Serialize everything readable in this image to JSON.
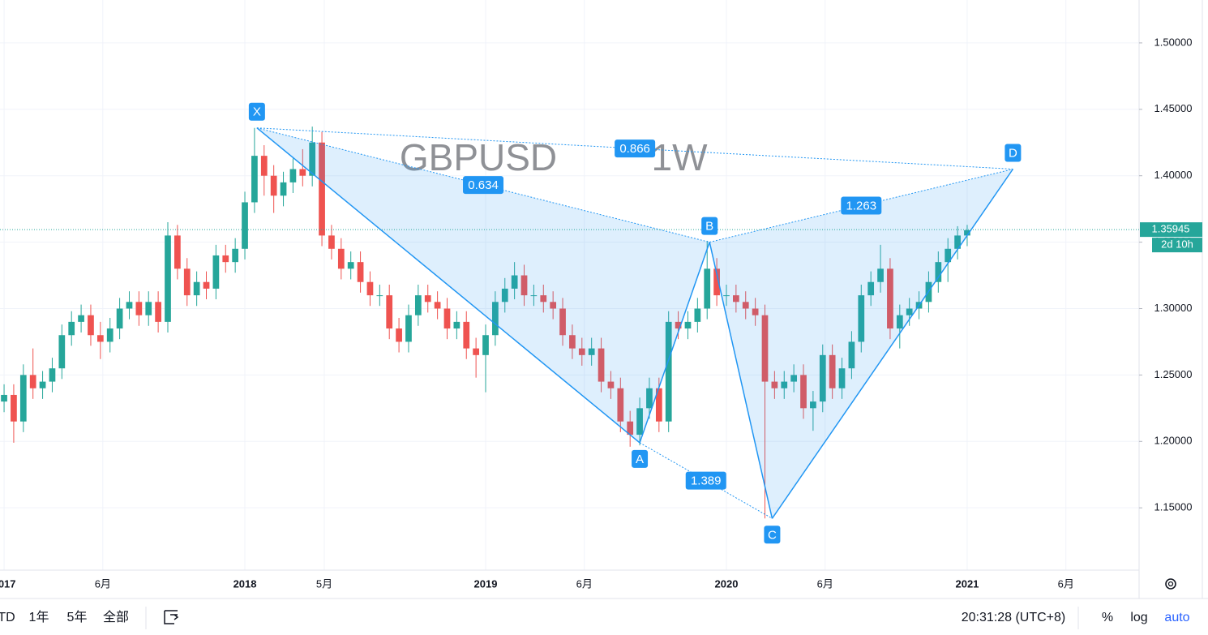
{
  "chart_data": {
    "type": "candlestick",
    "symbol": "GBPUSD",
    "interval": "1W",
    "x": [
      2017,
      2017.04,
      2017.08,
      2017.12,
      2017.16,
      2017.2,
      2017.24,
      2017.28,
      2017.32,
      2017.36,
      2017.4,
      2017.44,
      2017.48,
      2017.52,
      2017.56,
      2017.6,
      2017.64,
      2017.68,
      2017.72,
      2017.76,
      2017.8,
      2017.84,
      2017.88,
      2017.92,
      2017.96,
      2018,
      2018.04,
      2018.08,
      2018.12,
      2018.16,
      2018.2,
      2018.24,
      2018.28,
      2018.32,
      2018.36,
      2018.4,
      2018.44,
      2018.48,
      2018.52,
      2018.56,
      2018.6,
      2018.64,
      2018.68,
      2018.72,
      2018.76,
      2018.8,
      2018.84,
      2018.88,
      2018.92,
      2018.96,
      2019,
      2019.04,
      2019.08,
      2019.12,
      2019.16,
      2019.2,
      2019.24,
      2019.28,
      2019.32,
      2019.36,
      2019.4,
      2019.44,
      2019.48,
      2019.52,
      2019.56,
      2019.6,
      2019.64,
      2019.68,
      2019.72,
      2019.76,
      2019.8,
      2019.84,
      2019.88,
      2019.92,
      2019.96,
      2020,
      2020.04,
      2020.08,
      2020.12,
      2020.16,
      2020.2,
      2020.24,
      2020.28,
      2020.32,
      2020.36,
      2020.4,
      2020.44,
      2020.48,
      2020.52,
      2020.56,
      2020.6,
      2020.64,
      2020.68,
      2020.72,
      2020.76,
      2020.8,
      2020.84,
      2020.88,
      2020.92,
      2020.96,
      2021
    ],
    "open": [
      1.23,
      1.235,
      1.215,
      1.25,
      1.24,
      1.245,
      1.255,
      1.28,
      1.29,
      1.295,
      1.28,
      1.275,
      1.285,
      1.3,
      1.305,
      1.295,
      1.305,
      1.29,
      1.355,
      1.33,
      1.31,
      1.32,
      1.315,
      1.34,
      1.335,
      1.345,
      1.38,
      1.415,
      1.4,
      1.385,
      1.395,
      1.405,
      1.4,
      1.425,
      1.355,
      1.345,
      1.33,
      1.335,
      1.32,
      1.31,
      1.31,
      1.285,
      1.275,
      1.295,
      1.31,
      1.305,
      1.3,
      1.285,
      1.29,
      1.27,
      1.265,
      1.28,
      1.305,
      1.315,
      1.325,
      1.31,
      1.31,
      1.305,
      1.3,
      1.28,
      1.27,
      1.265,
      1.27,
      1.245,
      1.24,
      1.215,
      1.205,
      1.225,
      1.24,
      1.215,
      1.29,
      1.285,
      1.29,
      1.3,
      1.33,
      1.31,
      1.31,
      1.305,
      1.3,
      1.295,
      1.245,
      1.24,
      1.245,
      1.25,
      1.225,
      1.23,
      1.265,
      1.24,
      1.255,
      1.275,
      1.31,
      1.32,
      1.33,
      1.285,
      1.295,
      1.3,
      1.305,
      1.32,
      1.335,
      1.345,
      1.355
    ],
    "high": [
      1.243,
      1.243,
      1.258,
      1.27,
      1.253,
      1.263,
      1.288,
      1.298,
      1.303,
      1.303,
      1.29,
      1.293,
      1.308,
      1.313,
      1.313,
      1.313,
      1.313,
      1.365,
      1.363,
      1.338,
      1.328,
      1.328,
      1.348,
      1.348,
      1.353,
      1.388,
      1.436,
      1.423,
      1.408,
      1.403,
      1.413,
      1.42,
      1.437,
      1.433,
      1.363,
      1.353,
      1.343,
      1.343,
      1.328,
      1.318,
      1.318,
      1.293,
      1.303,
      1.318,
      1.318,
      1.313,
      1.308,
      1.298,
      1.298,
      1.278,
      1.288,
      1.313,
      1.323,
      1.335,
      1.333,
      1.318,
      1.318,
      1.313,
      1.308,
      1.288,
      1.278,
      1.278,
      1.278,
      1.253,
      1.248,
      1.223,
      1.233,
      1.248,
      1.248,
      1.298,
      1.298,
      1.298,
      1.308,
      1.351,
      1.338,
      1.318,
      1.318,
      1.313,
      1.308,
      1.303,
      1.253,
      1.253,
      1.258,
      1.258,
      1.238,
      1.273,
      1.273,
      1.263,
      1.283,
      1.318,
      1.328,
      1.348,
      1.338,
      1.303,
      1.308,
      1.313,
      1.328,
      1.343,
      1.353,
      1.362,
      1.363
    ],
    "low": [
      1.222,
      1.199,
      1.207,
      1.232,
      1.232,
      1.237,
      1.247,
      1.272,
      1.282,
      1.272,
      1.262,
      1.267,
      1.277,
      1.292,
      1.287,
      1.287,
      1.282,
      1.282,
      1.322,
      1.302,
      1.302,
      1.307,
      1.307,
      1.327,
      1.327,
      1.337,
      1.372,
      1.385,
      1.372,
      1.377,
      1.387,
      1.392,
      1.392,
      1.347,
      1.337,
      1.322,
      1.322,
      1.312,
      1.302,
      1.302,
      1.277,
      1.267,
      1.267,
      1.287,
      1.297,
      1.292,
      1.277,
      1.277,
      1.262,
      1.248,
      1.237,
      1.272,
      1.297,
      1.307,
      1.302,
      1.302,
      1.297,
      1.292,
      1.272,
      1.262,
      1.257,
      1.257,
      1.237,
      1.232,
      1.207,
      1.196,
      1.197,
      1.217,
      1.207,
      1.207,
      1.277,
      1.277,
      1.282,
      1.292,
      1.302,
      1.302,
      1.297,
      1.292,
      1.287,
      1.142,
      1.232,
      1.232,
      1.237,
      1.217,
      1.208,
      1.222,
      1.232,
      1.232,
      1.247,
      1.267,
      1.302,
      1.312,
      1.277,
      1.27,
      1.287,
      1.292,
      1.297,
      1.312,
      1.32,
      1.337,
      1.347
    ],
    "close": [
      1.235,
      1.215,
      1.25,
      1.24,
      1.245,
      1.255,
      1.28,
      1.29,
      1.295,
      1.28,
      1.275,
      1.285,
      1.3,
      1.305,
      1.295,
      1.305,
      1.29,
      1.355,
      1.33,
      1.31,
      1.32,
      1.315,
      1.34,
      1.335,
      1.345,
      1.38,
      1.415,
      1.4,
      1.385,
      1.395,
      1.405,
      1.4,
      1.425,
      1.355,
      1.345,
      1.33,
      1.335,
      1.32,
      1.31,
      1.31,
      1.285,
      1.275,
      1.295,
      1.31,
      1.305,
      1.3,
      1.285,
      1.29,
      1.27,
      1.265,
      1.28,
      1.305,
      1.315,
      1.325,
      1.31,
      1.31,
      1.305,
      1.3,
      1.28,
      1.27,
      1.265,
      1.27,
      1.245,
      1.24,
      1.215,
      1.205,
      1.225,
      1.24,
      1.215,
      1.29,
      1.285,
      1.29,
      1.3,
      1.33,
      1.31,
      1.31,
      1.305,
      1.3,
      1.295,
      1.245,
      1.24,
      1.245,
      1.25,
      1.225,
      1.23,
      1.265,
      1.24,
      1.255,
      1.275,
      1.31,
      1.32,
      1.33,
      1.285,
      1.295,
      1.3,
      1.305,
      1.32,
      1.335,
      1.345,
      1.355,
      1.359
    ],
    "up_color": "#26a69a",
    "down_color": "#ef5350",
    "xlim": [
      2016.983,
      2021.714
    ],
    "xticks": [
      {
        "value": 2017,
        "label": "2017"
      },
      {
        "value": 2017.41,
        "label": "6月"
      },
      2018,
      {
        "value": 2018.33,
        "label": "5月"
      },
      2019,
      {
        "value": 2019.41,
        "label": "6月"
      },
      2020,
      {
        "value": 2020.41,
        "label": "6月"
      },
      2021,
      {
        "value": 2021.41,
        "label": "6月"
      }
    ],
    "ylim": [
      1.1031,
      1.5323
    ],
    "yticks": [
      {
        "value": 1.15,
        "label": "1.15000"
      },
      {
        "value": 1.2,
        "label": "1.20000"
      },
      {
        "value": 1.25,
        "label": "1.25000"
      },
      {
        "value": 1.3,
        "label": "1.30000"
      },
      {
        "value": 1.35,
        "label": "1.35000"
      },
      {
        "value": 1.4,
        "label": "1.40000"
      },
      {
        "value": 1.45,
        "label": "1.45000"
      },
      {
        "value": 1.5,
        "label": "1.50000"
      }
    ],
    "grid": true,
    "last_price": 1.35945,
    "countdown": "2d 10h",
    "pattern": {
      "color": "#2196f3",
      "points": [
        {
          "label": "X",
          "x": 2018.05,
          "y": 1.436
        },
        {
          "label": "A",
          "x": 2019.64,
          "y": 1.199
        },
        {
          "label": "B",
          "x": 2019.93,
          "y": 1.35
        },
        {
          "label": "C",
          "x": 2020.19,
          "y": 1.142
        },
        {
          "label": "D",
          "x": 2021.19,
          "y": 1.405
        }
      ],
      "ratios": [
        0.634,
        0.866,
        1.389,
        1.263
      ]
    }
  },
  "toolbar": {
    "ranges": [
      "TD",
      "1年",
      "5年",
      "全部"
    ],
    "clock": "20:31:28 (UTC+8)",
    "scale_options": [
      "%",
      "log",
      "auto"
    ]
  }
}
